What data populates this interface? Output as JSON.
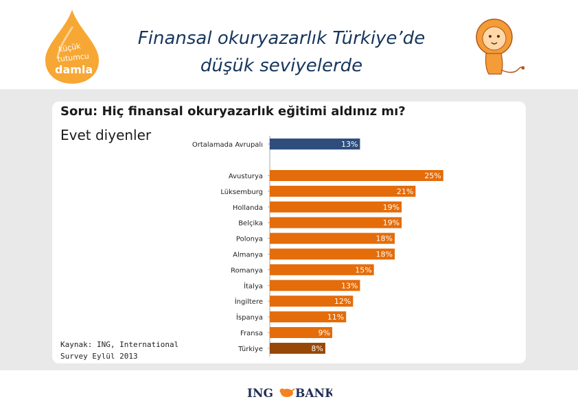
{
  "header": {
    "title_line1": "Finansal okuryazarlık Türkiye’de",
    "title_line2": "düşük seviyelerde",
    "logo_left_text": [
      "küçük",
      "tutumcu",
      "damla"
    ],
    "logo_right": "ING BANK"
  },
  "colors": {
    "title": "#17365d",
    "bar_default": "#e46c0a",
    "bar_europe": "#2e4d7c",
    "bar_turkey": "#974706",
    "logo_drop": "#f7a733"
  },
  "question": "Soru: Hiç finansal okuryazarlık eğitimi aldınız mı?",
  "subtitle": "Evet diyenler",
  "source": "Kaynak: ING, International Survey Eylül 2013",
  "chart_data": {
    "type": "bar",
    "orientation": "horizontal",
    "categories": [
      "Ortalamada Avrupalı",
      "Avusturya",
      "Lüksemburg",
      "Hollanda",
      "Belçika",
      "Polonya",
      "Almanya",
      "Romanya",
      "İtalya",
      "İngiltere",
      "İspanya",
      "Fransa",
      "Türkiye"
    ],
    "values": [
      13,
      25,
      21,
      19,
      19,
      18,
      18,
      15,
      13,
      12,
      11,
      9,
      8
    ],
    "labels": [
      "13%",
      "25%",
      "21%",
      "19%",
      "19%",
      "18%",
      "18%",
      "15%",
      "13%",
      "12%",
      "11%",
      "9%",
      "8%"
    ],
    "bar_colors": [
      "#2e4d7c",
      "#e46c0a",
      "#e46c0a",
      "#e46c0a",
      "#e46c0a",
      "#e46c0a",
      "#e46c0a",
      "#e46c0a",
      "#e46c0a",
      "#e46c0a",
      "#e46c0a",
      "#e46c0a",
      "#974706"
    ],
    "unit": "%",
    "xlim": [
      0,
      27
    ],
    "grid": false,
    "legend": "none"
  }
}
